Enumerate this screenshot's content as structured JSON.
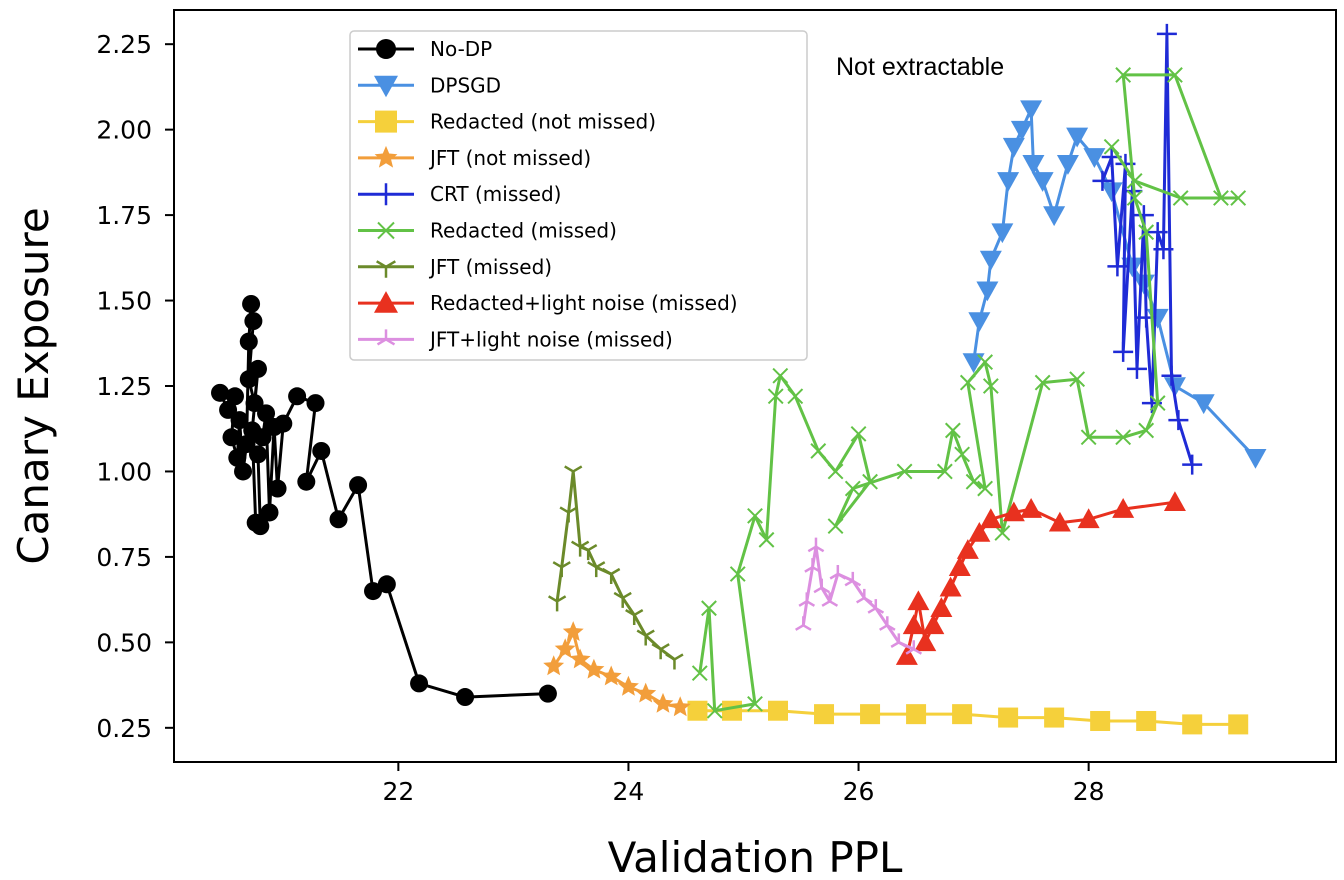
{
  "chart_data": {
    "type": "line",
    "title": "",
    "xlabel": "Validation PPL",
    "ylabel": "Canary Exposure",
    "xlim": [
      20.05,
      30.15
    ],
    "ylim": [
      0.15,
      2.35
    ],
    "xticks": [
      22,
      24,
      26,
      28
    ],
    "xtick_labels": [
      "22",
      "24",
      "26",
      "28"
    ],
    "yticks": [
      0.25,
      0.5,
      0.75,
      1.0,
      1.25,
      1.5,
      1.75,
      2.0,
      2.25
    ],
    "ytick_labels": [
      "0.25",
      "0.50",
      "0.75",
      "1.00",
      "1.25",
      "1.50",
      "1.75",
      "2.00",
      "2.25"
    ],
    "grid": false,
    "legend_position": "top-left",
    "annotation": "Not extractable",
    "series": [
      {
        "name": "No-DP",
        "color": "#000000",
        "marker": "circle",
        "points": [
          [
            20.45,
            1.23
          ],
          [
            20.52,
            1.18
          ],
          [
            20.58,
            1.22
          ],
          [
            20.55,
            1.1
          ],
          [
            20.6,
            1.04
          ],
          [
            20.62,
            1.15
          ],
          [
            20.65,
            1.0
          ],
          [
            20.68,
            1.08
          ],
          [
            20.7,
            1.38
          ],
          [
            20.72,
            1.49
          ],
          [
            20.74,
            1.44
          ],
          [
            20.7,
            1.27
          ],
          [
            20.75,
            1.2
          ],
          [
            20.78,
            1.3
          ],
          [
            20.73,
            1.12
          ],
          [
            20.76,
            0.85
          ],
          [
            20.8,
            0.84
          ],
          [
            20.78,
            1.05
          ],
          [
            20.82,
            1.1
          ],
          [
            20.85,
            1.17
          ],
          [
            20.88,
            0.88
          ],
          [
            20.92,
            1.13
          ],
          [
            20.95,
            0.95
          ],
          [
            21.0,
            1.14
          ],
          [
            21.12,
            1.22
          ],
          [
            21.28,
            1.2
          ],
          [
            21.2,
            0.97
          ],
          [
            21.33,
            1.06
          ],
          [
            21.48,
            0.86
          ],
          [
            21.65,
            0.96
          ],
          [
            21.78,
            0.65
          ],
          [
            21.9,
            0.67
          ],
          [
            22.18,
            0.38
          ],
          [
            22.58,
            0.34
          ],
          [
            23.3,
            0.35
          ]
        ]
      },
      {
        "name": "DPSGD",
        "color": "#4a90e2",
        "marker": "triangle-down",
        "points": [
          [
            27.0,
            1.32
          ],
          [
            27.05,
            1.44
          ],
          [
            27.12,
            1.53
          ],
          [
            27.15,
            1.62
          ],
          [
            27.25,
            1.7
          ],
          [
            27.3,
            1.85
          ],
          [
            27.35,
            1.95
          ],
          [
            27.42,
            2.0
          ],
          [
            27.5,
            2.06
          ],
          [
            27.52,
            1.9
          ],
          [
            27.6,
            1.85
          ],
          [
            27.7,
            1.75
          ],
          [
            27.82,
            1.9
          ],
          [
            27.9,
            1.98
          ],
          [
            28.05,
            1.92
          ],
          [
            28.2,
            1.82
          ],
          [
            28.38,
            1.6
          ],
          [
            28.48,
            1.55
          ],
          [
            28.6,
            1.45
          ],
          [
            28.75,
            1.25
          ],
          [
            29.0,
            1.2
          ],
          [
            29.45,
            1.04
          ]
        ]
      },
      {
        "name": "Redacted (not missed)",
        "color": "#f5d03b",
        "marker": "square",
        "points": [
          [
            24.6,
            0.3
          ],
          [
            24.9,
            0.3
          ],
          [
            25.3,
            0.3
          ],
          [
            25.7,
            0.29
          ],
          [
            26.1,
            0.29
          ],
          [
            26.5,
            0.29
          ],
          [
            26.9,
            0.29
          ],
          [
            27.3,
            0.28
          ],
          [
            27.7,
            0.28
          ],
          [
            28.1,
            0.27
          ],
          [
            28.5,
            0.27
          ],
          [
            28.9,
            0.26
          ],
          [
            29.3,
            0.26
          ]
        ]
      },
      {
        "name": "JFT (not missed)",
        "color": "#f29e3b",
        "marker": "star",
        "points": [
          [
            23.35,
            0.43
          ],
          [
            23.45,
            0.48
          ],
          [
            23.52,
            0.53
          ],
          [
            23.58,
            0.45
          ],
          [
            23.7,
            0.42
          ],
          [
            23.85,
            0.4
          ],
          [
            24.0,
            0.37
          ],
          [
            24.15,
            0.35
          ],
          [
            24.3,
            0.32
          ],
          [
            24.45,
            0.31
          ]
        ]
      },
      {
        "name": "CRT (missed)",
        "color": "#1f2bd6",
        "marker": "plus",
        "points": [
          [
            28.12,
            1.85
          ],
          [
            28.2,
            1.92
          ],
          [
            28.25,
            1.6
          ],
          [
            28.32,
            1.9
          ],
          [
            28.3,
            1.35
          ],
          [
            28.38,
            1.82
          ],
          [
            28.42,
            1.3
          ],
          [
            28.48,
            1.75
          ],
          [
            28.5,
            1.45
          ],
          [
            28.55,
            1.2
          ],
          [
            28.6,
            1.7
          ],
          [
            28.65,
            1.65
          ],
          [
            28.68,
            2.28
          ],
          [
            28.72,
            1.28
          ],
          [
            28.78,
            1.15
          ],
          [
            28.9,
            1.02
          ]
        ]
      },
      {
        "name": "Redacted (missed)",
        "color": "#62c246",
        "marker": "x",
        "points": [
          [
            24.62,
            0.41
          ],
          [
            24.7,
            0.6
          ],
          [
            24.75,
            0.3
          ],
          [
            25.1,
            0.32
          ],
          [
            24.95,
            0.7
          ],
          [
            25.1,
            0.87
          ],
          [
            25.2,
            0.8
          ],
          [
            25.28,
            1.22
          ],
          [
            25.32,
            1.28
          ],
          [
            25.45,
            1.22
          ],
          [
            25.65,
            1.06
          ],
          [
            25.8,
            1.0
          ],
          [
            26.0,
            1.11
          ],
          [
            26.1,
            0.97
          ],
          [
            25.8,
            0.84
          ],
          [
            25.95,
            0.95
          ],
          [
            26.4,
            1.0
          ],
          [
            26.75,
            1.0
          ],
          [
            26.82,
            1.12
          ],
          [
            26.9,
            1.05
          ],
          [
            27.0,
            0.97
          ],
          [
            27.1,
            0.95
          ],
          [
            26.95,
            1.26
          ],
          [
            27.1,
            1.32
          ],
          [
            27.15,
            1.25
          ],
          [
            27.25,
            0.82
          ],
          [
            27.6,
            1.26
          ],
          [
            27.9,
            1.27
          ],
          [
            28.0,
            1.1
          ],
          [
            28.3,
            1.1
          ],
          [
            28.5,
            1.12
          ],
          [
            28.6,
            1.2
          ],
          [
            28.5,
            1.7
          ],
          [
            28.4,
            1.8
          ],
          [
            28.3,
            2.16
          ],
          [
            28.75,
            2.16
          ],
          [
            29.15,
            1.8
          ],
          [
            29.3,
            1.8
          ],
          [
            28.8,
            1.8
          ],
          [
            28.4,
            1.85
          ],
          [
            28.2,
            1.95
          ]
        ]
      },
      {
        "name": "JFT (missed)",
        "color": "#6b8a2a",
        "marker": "tri-down",
        "points": [
          [
            23.38,
            0.62
          ],
          [
            23.42,
            0.72
          ],
          [
            23.48,
            0.88
          ],
          [
            23.52,
            1.0
          ],
          [
            23.58,
            0.78
          ],
          [
            23.65,
            0.77
          ],
          [
            23.72,
            0.72
          ],
          [
            23.85,
            0.7
          ],
          [
            23.95,
            0.63
          ],
          [
            24.05,
            0.58
          ],
          [
            24.15,
            0.52
          ],
          [
            24.28,
            0.48
          ],
          [
            24.4,
            0.45
          ]
        ]
      },
      {
        "name": "Redacted+light noise (missed)",
        "color": "#e8311f",
        "marker": "triangle-up",
        "points": [
          [
            26.42,
            0.46
          ],
          [
            26.48,
            0.55
          ],
          [
            26.52,
            0.62
          ],
          [
            26.58,
            0.5
          ],
          [
            26.65,
            0.55
          ],
          [
            26.72,
            0.6
          ],
          [
            26.8,
            0.66
          ],
          [
            26.88,
            0.72
          ],
          [
            26.95,
            0.77
          ],
          [
            27.05,
            0.82
          ],
          [
            27.15,
            0.86
          ],
          [
            27.35,
            0.88
          ],
          [
            27.5,
            0.89
          ],
          [
            27.75,
            0.85
          ],
          [
            28.0,
            0.86
          ],
          [
            28.3,
            0.89
          ],
          [
            28.75,
            0.91
          ]
        ]
      },
      {
        "name": "JFT+light noise (missed)",
        "color": "#dc8fe0",
        "marker": "tri-up",
        "points": [
          [
            25.52,
            0.55
          ],
          [
            25.55,
            0.62
          ],
          [
            25.6,
            0.72
          ],
          [
            25.63,
            0.78
          ],
          [
            25.68,
            0.66
          ],
          [
            25.75,
            0.62
          ],
          [
            25.82,
            0.7
          ],
          [
            25.95,
            0.68
          ],
          [
            26.05,
            0.63
          ],
          [
            26.15,
            0.6
          ],
          [
            26.25,
            0.55
          ],
          [
            26.35,
            0.5
          ],
          [
            26.48,
            0.48
          ]
        ]
      }
    ]
  }
}
